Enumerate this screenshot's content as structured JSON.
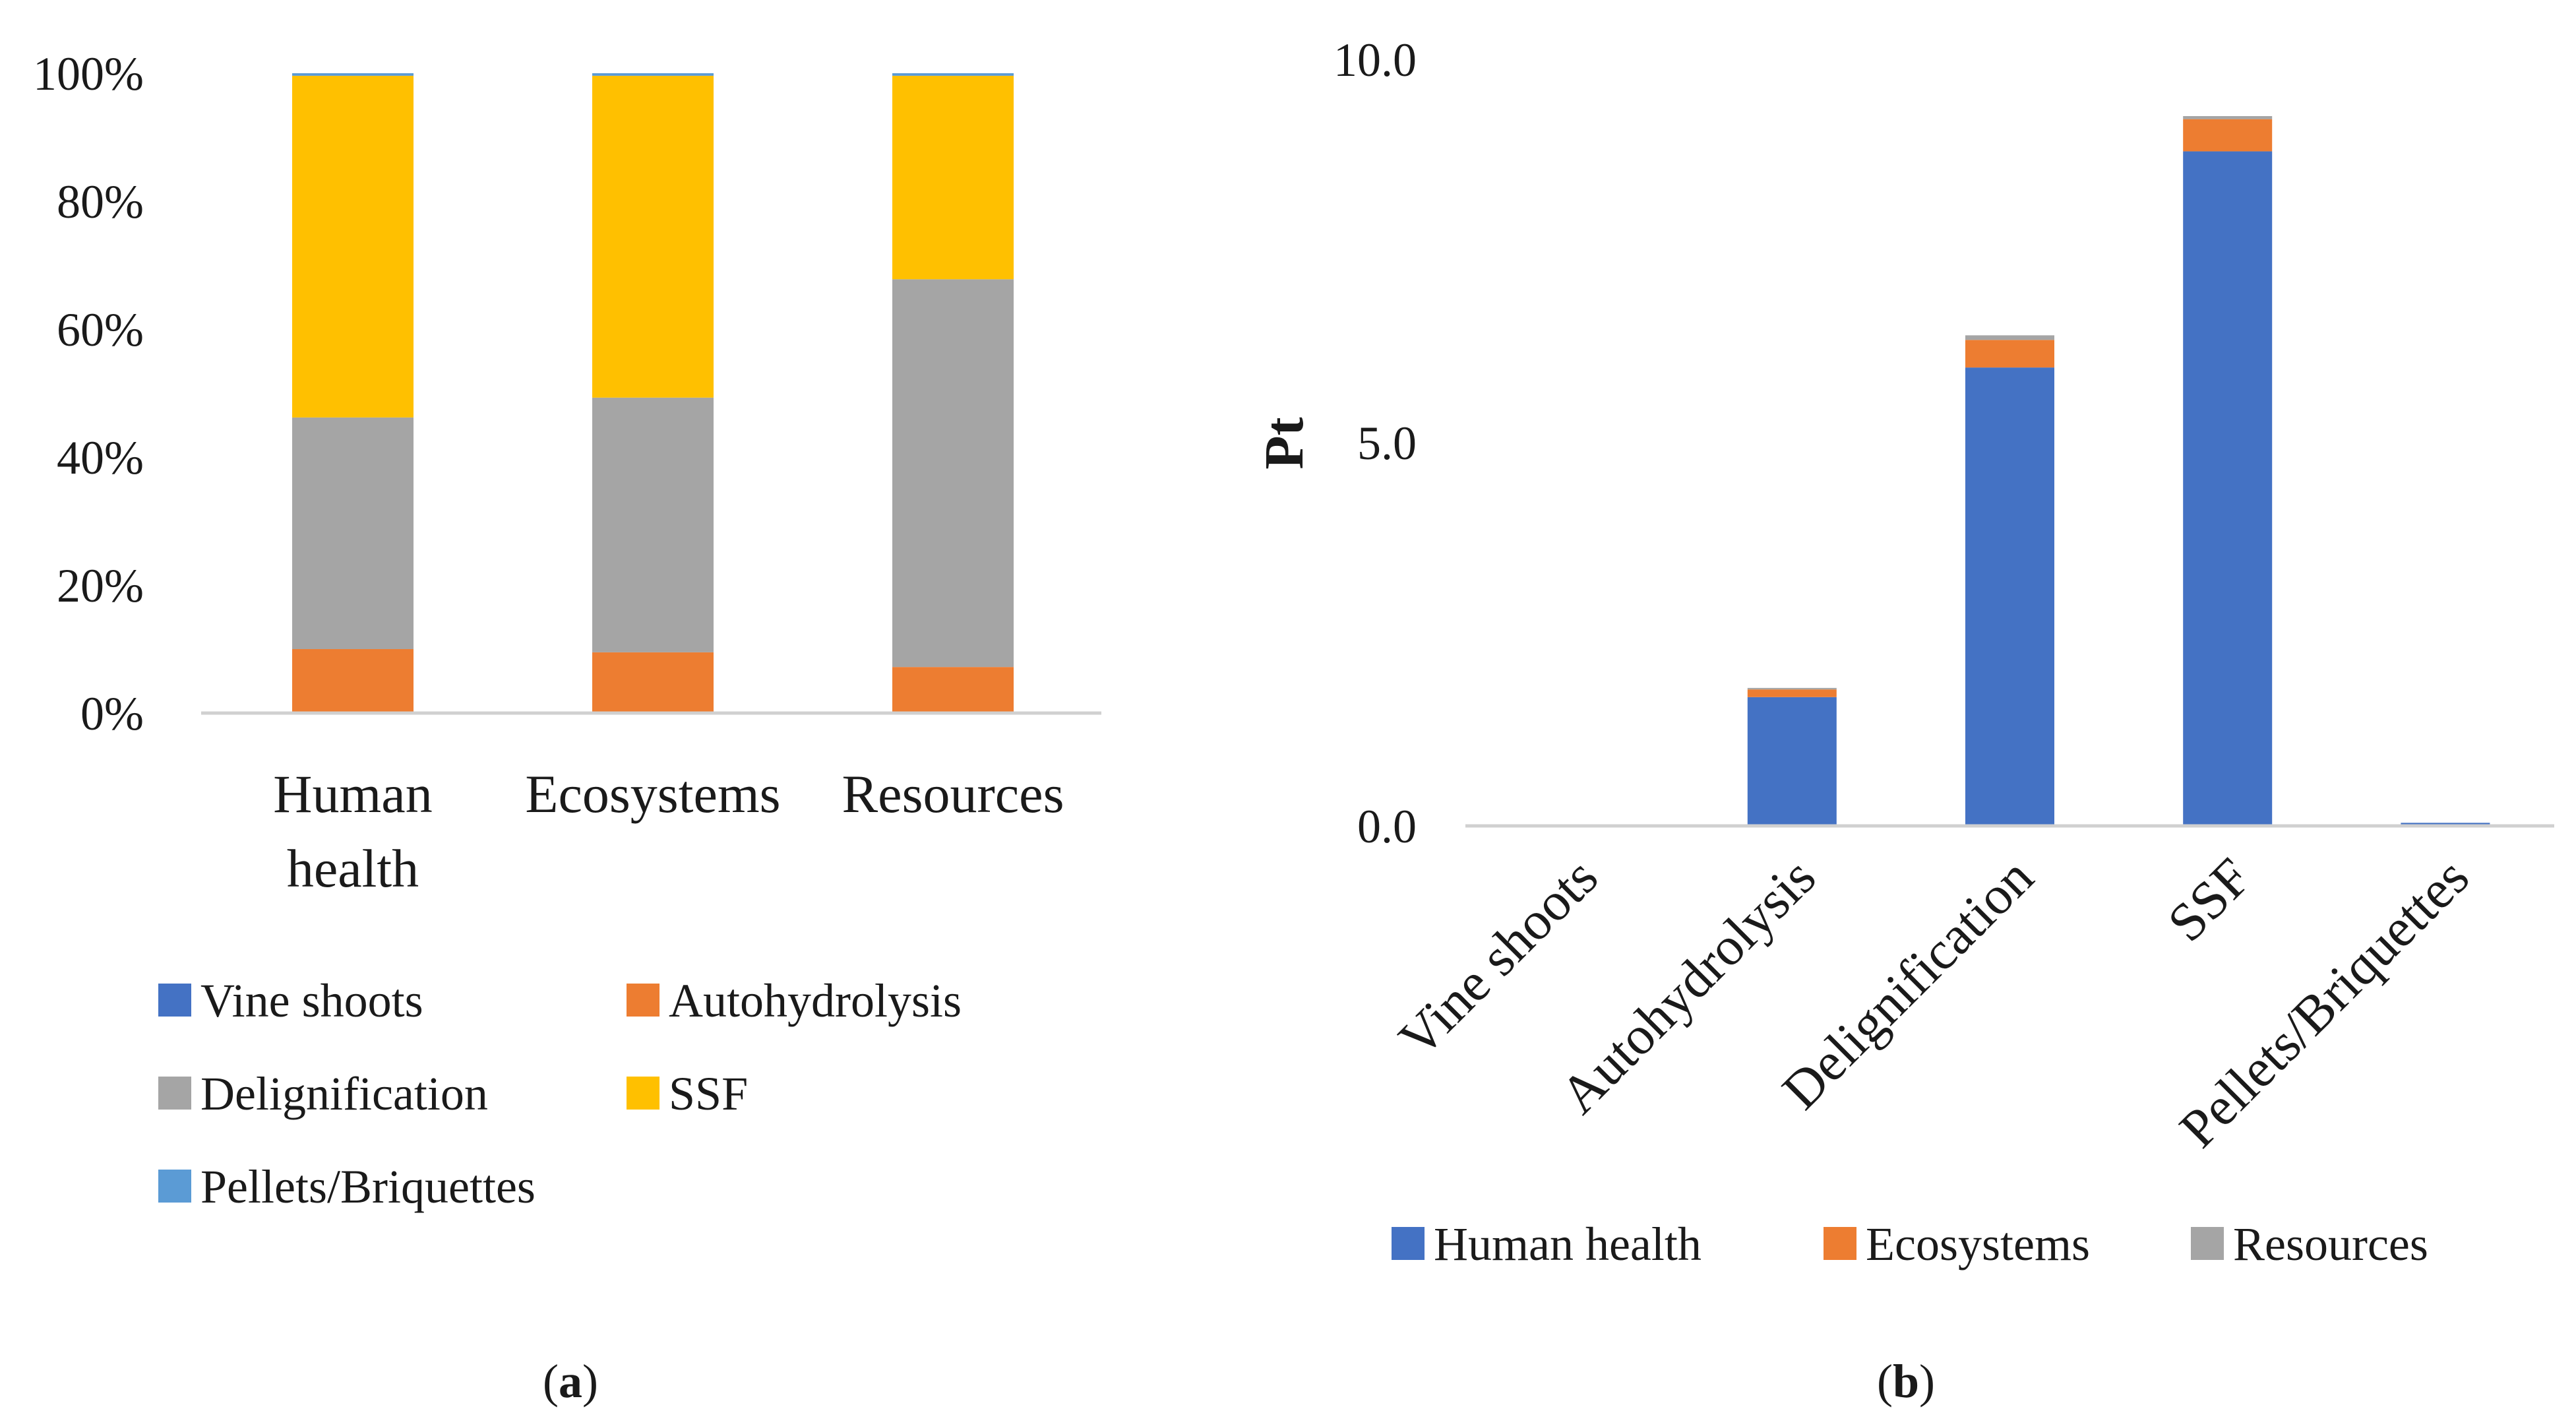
{
  "chart_data": [
    {
      "type": "bar",
      "stacked": "percent",
      "panel_label": "a",
      "categories": [
        "Human health",
        "Ecosystems",
        "Resources"
      ],
      "category_lines": [
        [
          "Human",
          "health"
        ],
        [
          "Ecosystems"
        ],
        [
          "Resources"
        ]
      ],
      "series": [
        {
          "name": "Vine shoots",
          "color": "#4472C4",
          "values": [
            0.0,
            0.0,
            0.0
          ]
        },
        {
          "name": "Autohydrolysis",
          "color": "#ED7D31",
          "values": [
            10.0,
            9.5,
            7.2
          ]
        },
        {
          "name": "Delignification",
          "color": "#A5A5A5",
          "values": [
            36.2,
            39.8,
            60.6
          ]
        },
        {
          "name": "SSF",
          "color": "#FFC000",
          "values": [
            53.4,
            50.3,
            31.8
          ]
        },
        {
          "name": "Pellets/Briquettes",
          "color": "#5B9BD5",
          "values": [
            0.4,
            0.4,
            0.4
          ]
        }
      ],
      "yticks": [
        "0%",
        "20%",
        "40%",
        "60%",
        "80%",
        "100%"
      ],
      "ylim": [
        0,
        100
      ],
      "legend": "bottom"
    },
    {
      "type": "bar",
      "stacked": "absolute",
      "panel_label": "b",
      "categories": [
        "Vine shoots",
        "Autohydrolysis",
        "Delignification",
        "SSF",
        "Pellets/Briquettes"
      ],
      "series": [
        {
          "name": "Human health",
          "color": "#4472C4",
          "values": [
            0.0,
            1.68,
            5.98,
            8.8,
            0.04
          ]
        },
        {
          "name": "Ecosystems",
          "color": "#ED7D31",
          "values": [
            0.0,
            0.1,
            0.36,
            0.42,
            0.0
          ]
        },
        {
          "name": "Resources",
          "color": "#A5A5A5",
          "values": [
            0.0,
            0.02,
            0.06,
            0.04,
            0.0
          ]
        }
      ],
      "ylabel": "Pt",
      "yticks": [
        "0.0",
        "5.0",
        "10.0"
      ],
      "ylim": [
        0,
        10
      ],
      "legend": "bottom"
    }
  ]
}
